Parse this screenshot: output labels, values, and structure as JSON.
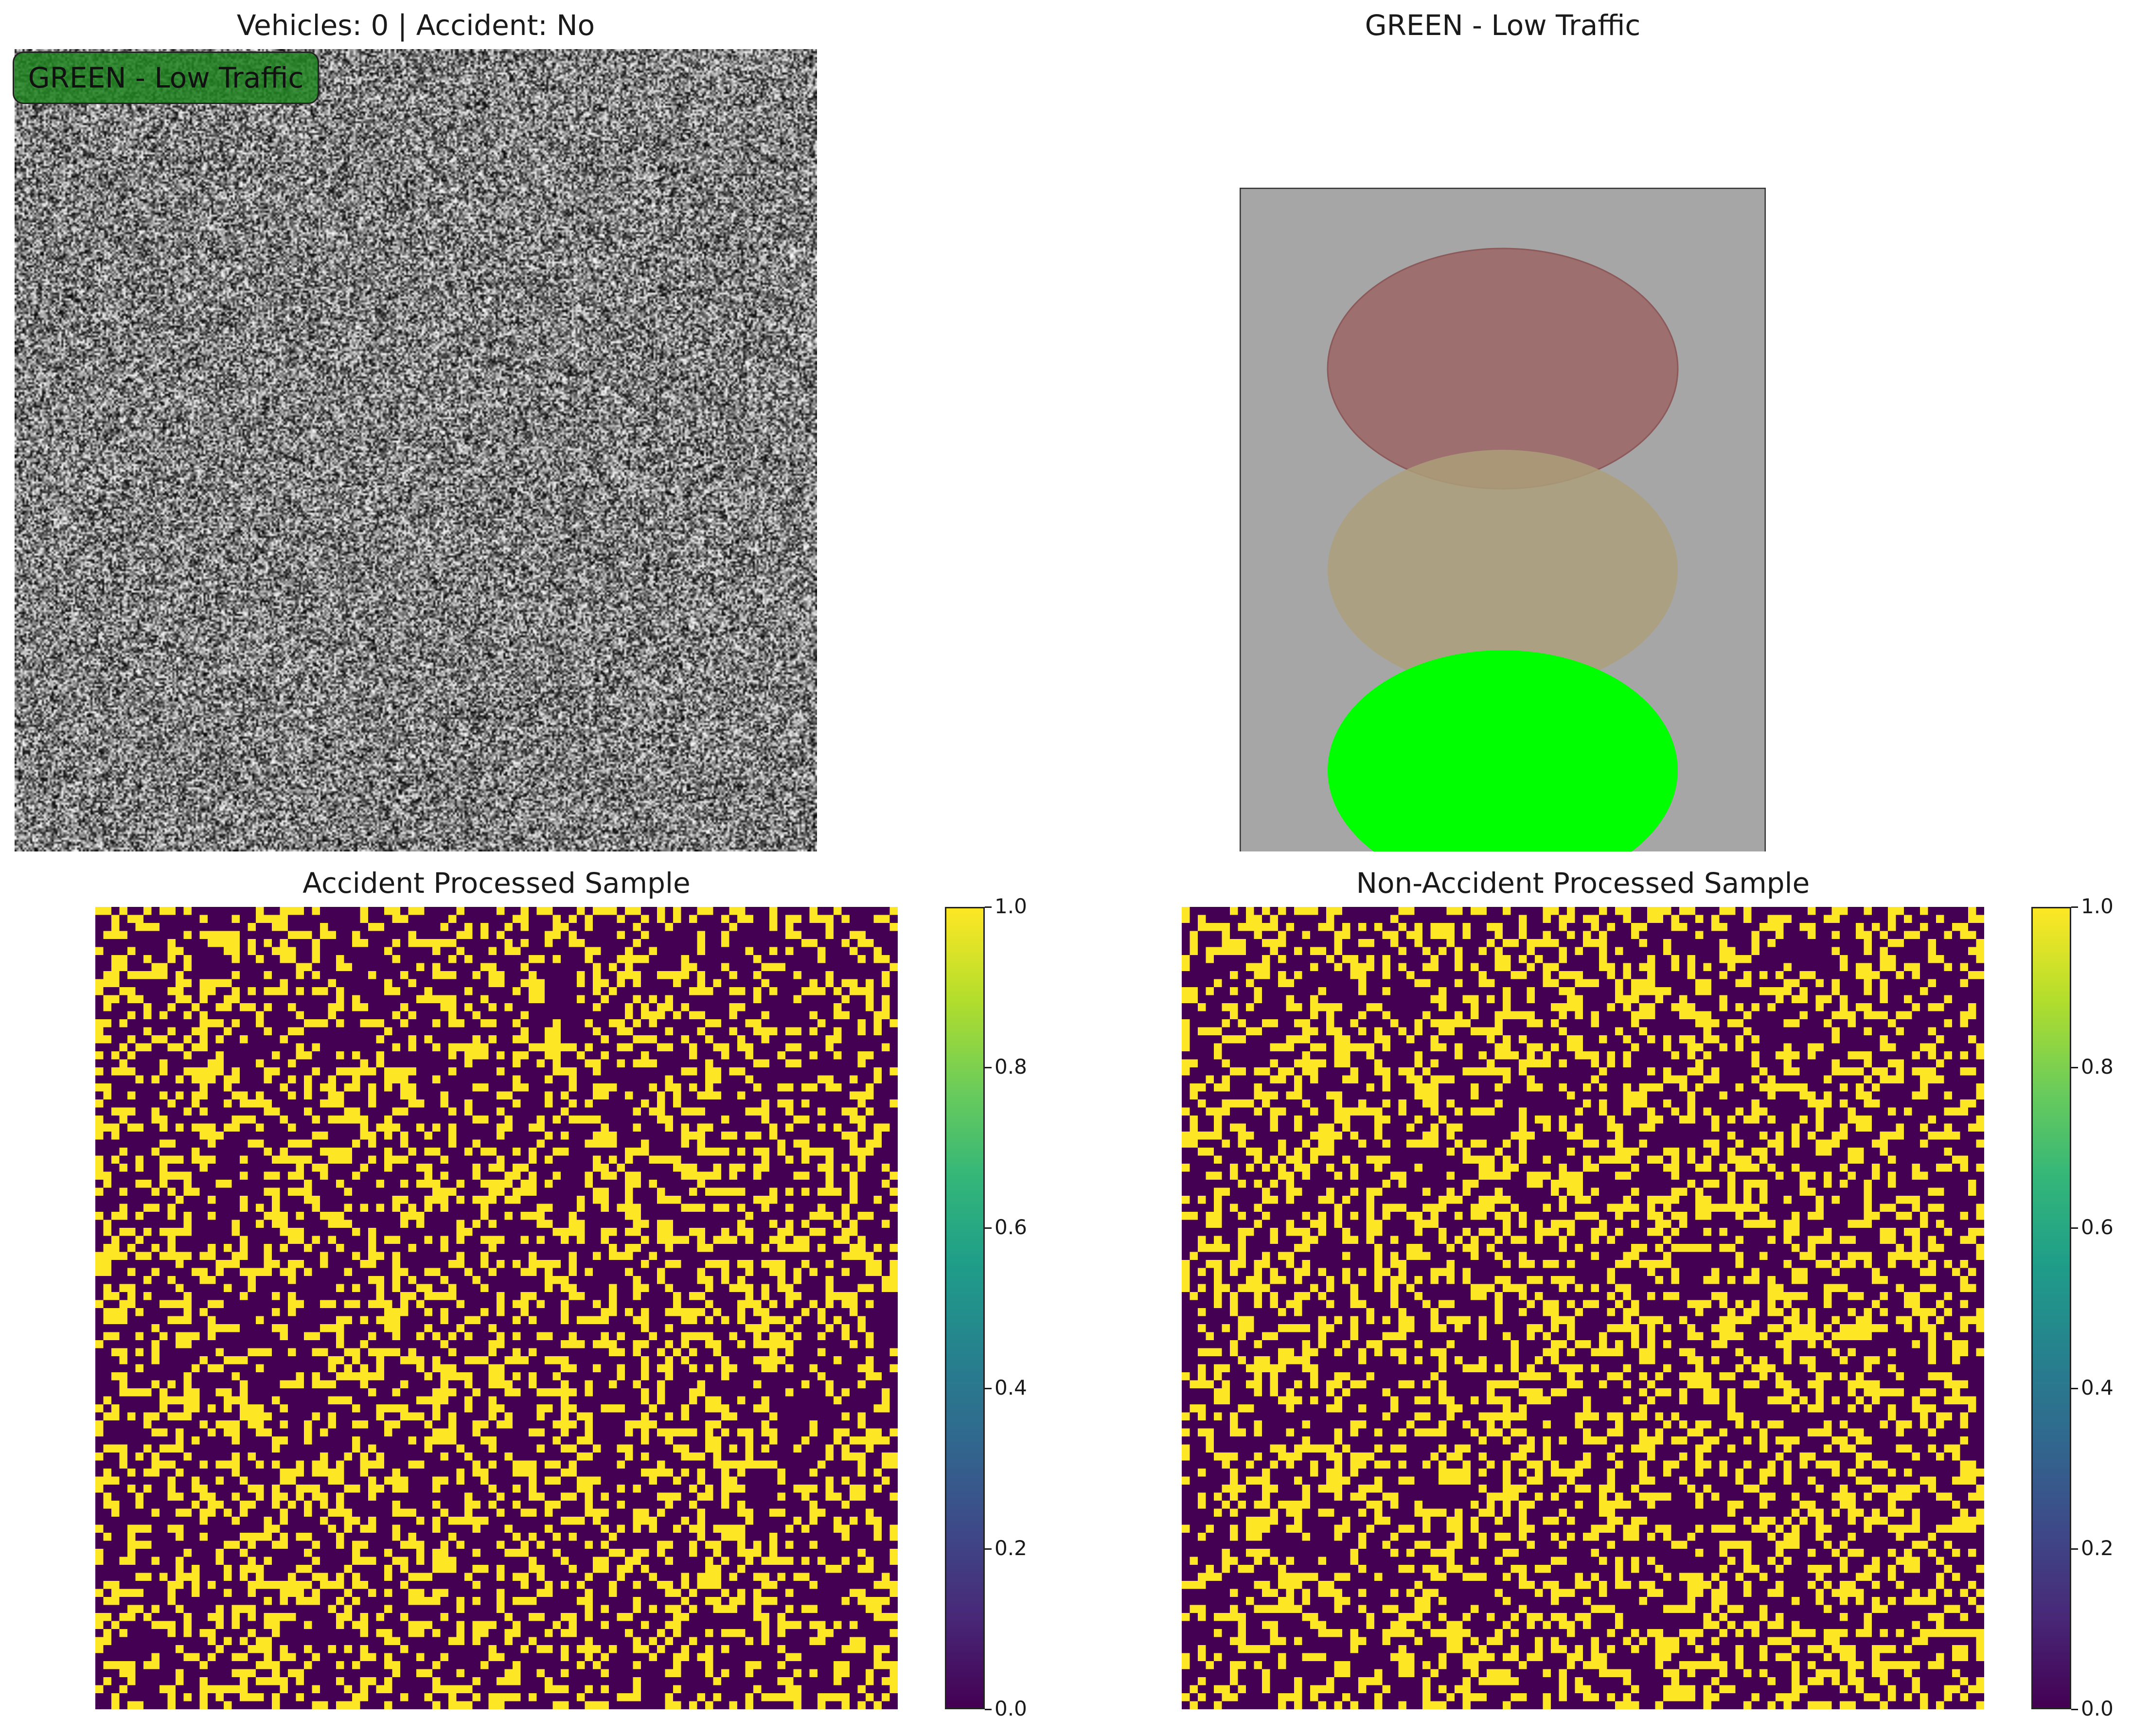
{
  "chart_data": [
    {
      "type": "image",
      "title": "Vehicles: 0 | Accident: No",
      "badge": "GREEN - Low Traffic",
      "content": "random black/white noise frame",
      "axes": "off"
    },
    {
      "type": "diagram",
      "title": "GREEN - Low Traffic",
      "lights": [
        {
          "name": "red",
          "state": "off",
          "color": "#9e6f6f"
        },
        {
          "name": "yellow",
          "state": "off",
          "color": "#ac9f7a"
        },
        {
          "name": "green",
          "state": "on",
          "color": "#00ff00"
        }
      ],
      "housing_color": "#a6a6a6",
      "axes": "off"
    },
    {
      "type": "heatmap",
      "title": "Accident Processed Sample",
      "grid_size": [
        100,
        100
      ],
      "values": "binary 0/1 pattern",
      "colormap": "viridis",
      "colorbar": {
        "ticks": [
          "0.0",
          "0.2",
          "0.4",
          "0.6",
          "0.8",
          "1.0"
        ],
        "range": [
          0,
          1
        ]
      },
      "axes": "off"
    },
    {
      "type": "heatmap",
      "title": "Non-Accident Processed Sample",
      "grid_size": [
        100,
        100
      ],
      "values": "binary 0/1 pattern",
      "colormap": "viridis",
      "colorbar": {
        "ticks": [
          "0.0",
          "0.2",
          "0.4",
          "0.6",
          "0.8",
          "1.0"
        ],
        "range": [
          0,
          1
        ]
      },
      "axes": "off"
    }
  ],
  "colors": {
    "viridis_low": "#440154",
    "viridis_high": "#fde725"
  }
}
